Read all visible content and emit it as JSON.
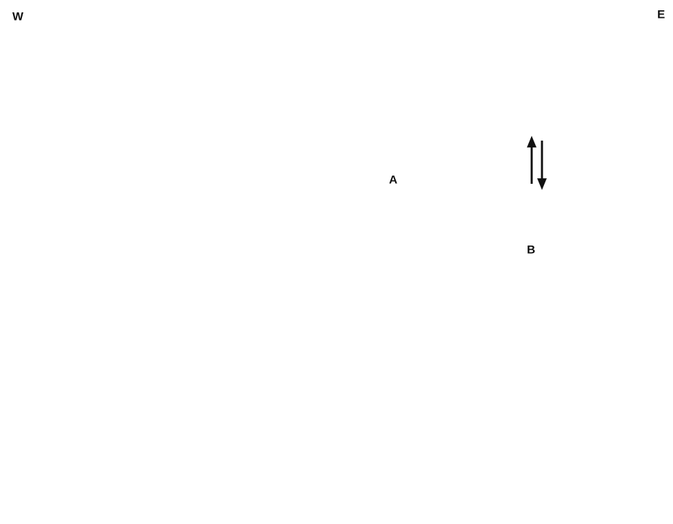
{
  "labels": {
    "west": "W",
    "east": "E",
    "point_a": "A",
    "point_b": "B"
  }
}
